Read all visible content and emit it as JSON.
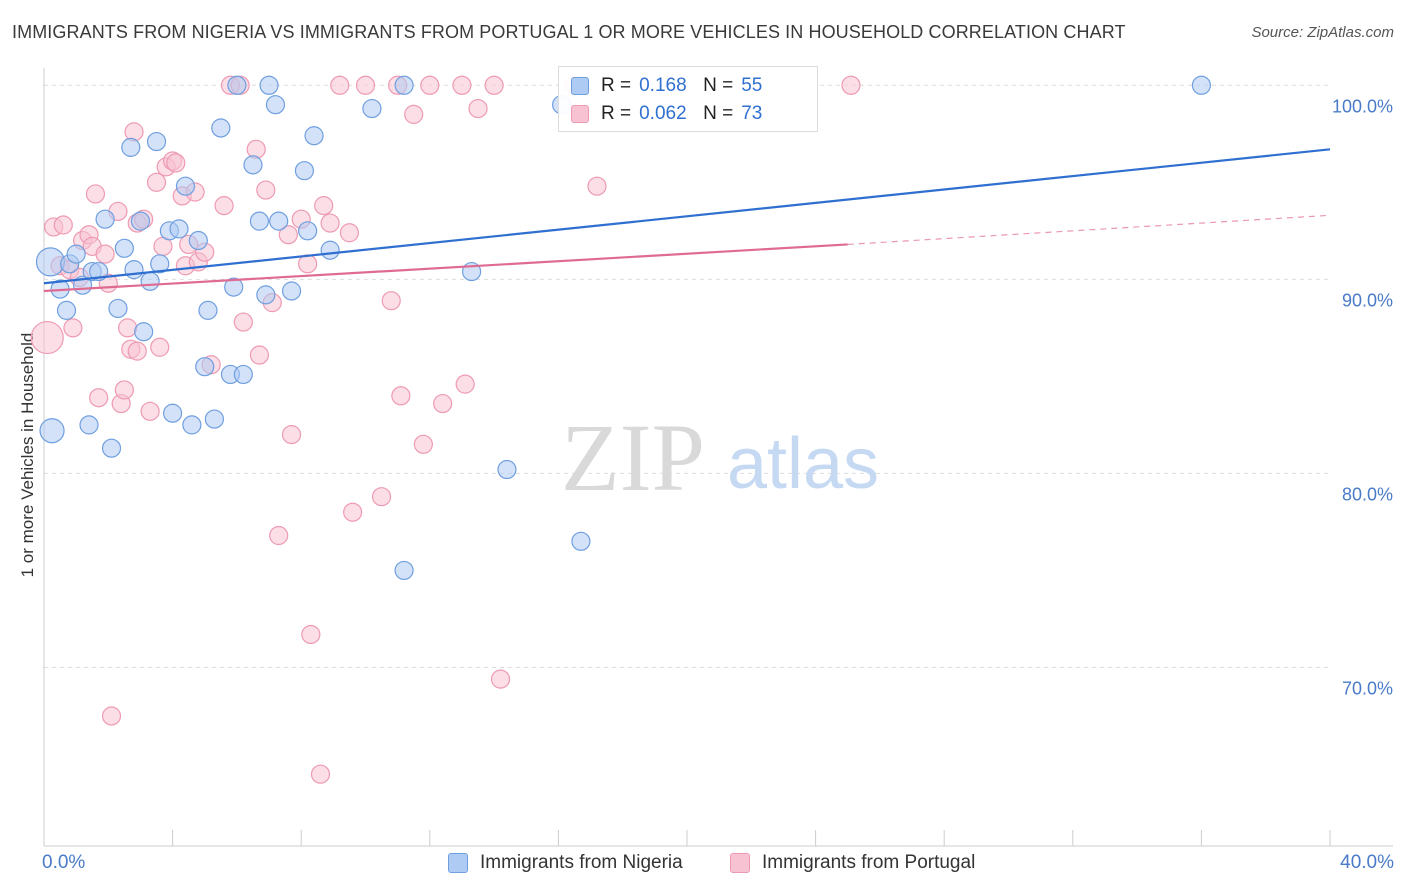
{
  "title": "IMMIGRANTS FROM NIGERIA VS IMMIGRANTS FROM PORTUGAL 1 OR MORE VEHICLES IN HOUSEHOLD CORRELATION CHART",
  "source": "Source: ZipAtlas.com",
  "colors": {
    "nigeria_fill": "#aecbf3",
    "nigeria_stroke": "#6f9fe0",
    "nigeria_line": "#2f6fd0",
    "portugal_fill": "#f7c3d2",
    "portugal_stroke": "#ee9ab2",
    "portugal_line": "#e06b92",
    "axis_text": "#4a7bc8",
    "grid": "#dddddd"
  },
  "legend": {
    "rows": [
      {
        "r_label": "R =",
        "r_value": "0.168",
        "n_label": "N =",
        "n_value": "55"
      },
      {
        "r_label": "R =",
        "r_value": "0.062",
        "n_label": "N =",
        "n_value": "73"
      }
    ]
  },
  "bottom_legend": {
    "nigeria": "Immigrants from Nigeria",
    "portugal": "Immigrants from Portugal"
  },
  "watermark": {
    "zip": "ZIP",
    "atlas": "atlas"
  },
  "chart_data": {
    "type": "scatter",
    "title": "IMMIGRANTS FROM NIGERIA VS IMMIGRANTS FROM PORTUGAL 1 OR MORE VEHICLES IN HOUSEHOLD CORRELATION CHART",
    "xlabel": "",
    "ylabel": "1 or more Vehicles in Household",
    "xlim": [
      0,
      40
    ],
    "ylim": [
      60.8,
      101.2
    ],
    "x_tick_labels": [
      "0.0%",
      "40.0%"
    ],
    "y_ticks": [
      70,
      80,
      90,
      100
    ],
    "y_tick_labels": [
      "70.0%",
      "80.0%",
      "90.0%",
      "100.0%"
    ],
    "series": [
      {
        "name": "Immigrants from Nigeria",
        "R": 0.168,
        "N": 55,
        "trend": {
          "x": [
            0,
            40
          ],
          "y": [
            89.8,
            96.7
          ]
        },
        "points": [
          {
            "x": 0.2,
            "y": 90.9,
            "s": 14
          },
          {
            "x": 0.25,
            "y": 82.2,
            "s": 12
          },
          {
            "x": 0.5,
            "y": 89.5,
            "s": 9
          },
          {
            "x": 0.7,
            "y": 88.4,
            "s": 9
          },
          {
            "x": 0.8,
            "y": 90.8,
            "s": 9
          },
          {
            "x": 1.0,
            "y": 91.3,
            "s": 9
          },
          {
            "x": 1.2,
            "y": 89.7,
            "s": 9
          },
          {
            "x": 1.4,
            "y": 82.5,
            "s": 9
          },
          {
            "x": 1.5,
            "y": 90.4,
            "s": 9
          },
          {
            "x": 1.7,
            "y": 90.4,
            "s": 9
          },
          {
            "x": 1.9,
            "y": 93.1,
            "s": 9
          },
          {
            "x": 2.1,
            "y": 81.3,
            "s": 9
          },
          {
            "x": 2.3,
            "y": 88.5,
            "s": 9
          },
          {
            "x": 2.5,
            "y": 91.6,
            "s": 9
          },
          {
            "x": 2.7,
            "y": 96.8,
            "s": 9
          },
          {
            "x": 2.8,
            "y": 90.5,
            "s": 9
          },
          {
            "x": 3.0,
            "y": 93.0,
            "s": 9
          },
          {
            "x": 3.1,
            "y": 87.3,
            "s": 9
          },
          {
            "x": 3.3,
            "y": 89.9,
            "s": 9
          },
          {
            "x": 3.5,
            "y": 97.1,
            "s": 9
          },
          {
            "x": 3.6,
            "y": 90.8,
            "s": 9
          },
          {
            "x": 3.9,
            "y": 92.5,
            "s": 9
          },
          {
            "x": 4.0,
            "y": 83.1,
            "s": 9
          },
          {
            "x": 4.2,
            "y": 92.6,
            "s": 9
          },
          {
            "x": 4.4,
            "y": 94.8,
            "s": 9
          },
          {
            "x": 4.6,
            "y": 82.5,
            "s": 9
          },
          {
            "x": 4.8,
            "y": 92.0,
            "s": 9
          },
          {
            "x": 5.0,
            "y": 85.5,
            "s": 9
          },
          {
            "x": 5.1,
            "y": 88.4,
            "s": 9
          },
          {
            "x": 5.3,
            "y": 82.8,
            "s": 9
          },
          {
            "x": 5.5,
            "y": 97.8,
            "s": 9
          },
          {
            "x": 5.8,
            "y": 85.1,
            "s": 9
          },
          {
            "x": 5.9,
            "y": 89.6,
            "s": 9
          },
          {
            "x": 6.2,
            "y": 85.1,
            "s": 9
          },
          {
            "x": 6.0,
            "y": 100.0,
            "s": 9
          },
          {
            "x": 6.5,
            "y": 95.9,
            "s": 9
          },
          {
            "x": 6.7,
            "y": 93.0,
            "s": 9
          },
          {
            "x": 6.9,
            "y": 89.2,
            "s": 9
          },
          {
            "x": 7.0,
            "y": 100.0,
            "s": 9
          },
          {
            "x": 7.2,
            "y": 99.0,
            "s": 9
          },
          {
            "x": 7.3,
            "y": 93.0,
            "s": 9
          },
          {
            "x": 7.7,
            "y": 89.4,
            "s": 9
          },
          {
            "x": 8.1,
            "y": 95.6,
            "s": 9
          },
          {
            "x": 8.2,
            "y": 92.5,
            "s": 9
          },
          {
            "x": 8.4,
            "y": 97.4,
            "s": 9
          },
          {
            "x": 8.9,
            "y": 91.5,
            "s": 9
          },
          {
            "x": 10.2,
            "y": 98.8,
            "s": 9
          },
          {
            "x": 11.2,
            "y": 100.0,
            "s": 9
          },
          {
            "x": 13.3,
            "y": 90.4,
            "s": 9
          },
          {
            "x": 14.4,
            "y": 80.2,
            "s": 9
          },
          {
            "x": 11.2,
            "y": 75.0,
            "s": 9
          },
          {
            "x": 16.1,
            "y": 99.0,
            "s": 9
          },
          {
            "x": 16.7,
            "y": 76.5,
            "s": 9
          },
          {
            "x": 36.0,
            "y": 100.0,
            "s": 9
          }
        ]
      },
      {
        "name": "Immigrants from Portugal",
        "R": 0.062,
        "N": 73,
        "trend": {
          "x": [
            0,
            25
          ],
          "y": [
            89.4,
            91.8
          ]
        },
        "trend_dashed": {
          "x": [
            25,
            40
          ],
          "y": [
            91.8,
            93.3
          ]
        },
        "points": [
          {
            "x": 0.1,
            "y": 87.0,
            "s": 16
          },
          {
            "x": 0.3,
            "y": 92.7,
            "s": 9
          },
          {
            "x": 0.5,
            "y": 90.7,
            "s": 9
          },
          {
            "x": 0.6,
            "y": 92.8,
            "s": 9
          },
          {
            "x": 0.8,
            "y": 90.5,
            "s": 9
          },
          {
            "x": 0.9,
            "y": 87.5,
            "s": 9
          },
          {
            "x": 1.1,
            "y": 90.1,
            "s": 9
          },
          {
            "x": 1.2,
            "y": 92.0,
            "s": 9
          },
          {
            "x": 1.4,
            "y": 92.3,
            "s": 9
          },
          {
            "x": 1.5,
            "y": 91.7,
            "s": 9
          },
          {
            "x": 1.6,
            "y": 94.4,
            "s": 9
          },
          {
            "x": 1.7,
            "y": 83.9,
            "s": 9
          },
          {
            "x": 1.9,
            "y": 91.3,
            "s": 9
          },
          {
            "x": 2.0,
            "y": 89.8,
            "s": 9
          },
          {
            "x": 2.1,
            "y": 67.5,
            "s": 9
          },
          {
            "x": 2.3,
            "y": 93.5,
            "s": 9
          },
          {
            "x": 2.4,
            "y": 83.6,
            "s": 9
          },
          {
            "x": 2.5,
            "y": 84.3,
            "s": 9
          },
          {
            "x": 2.6,
            "y": 87.5,
            "s": 9
          },
          {
            "x": 2.7,
            "y": 86.4,
            "s": 9
          },
          {
            "x": 2.8,
            "y": 97.6,
            "s": 9
          },
          {
            "x": 2.9,
            "y": 86.3,
            "s": 9
          },
          {
            "x": 2.9,
            "y": 92.9,
            "s": 9
          },
          {
            "x": 3.1,
            "y": 93.1,
            "s": 9
          },
          {
            "x": 3.3,
            "y": 83.2,
            "s": 9
          },
          {
            "x": 3.5,
            "y": 95.0,
            "s": 9
          },
          {
            "x": 3.6,
            "y": 86.5,
            "s": 9
          },
          {
            "x": 3.7,
            "y": 91.7,
            "s": 9
          },
          {
            "x": 3.8,
            "y": 95.8,
            "s": 9
          },
          {
            "x": 4.0,
            "y": 96.1,
            "s": 9
          },
          {
            "x": 4.1,
            "y": 96.0,
            "s": 9
          },
          {
            "x": 4.3,
            "y": 94.3,
            "s": 9
          },
          {
            "x": 4.4,
            "y": 90.7,
            "s": 9
          },
          {
            "x": 4.5,
            "y": 91.8,
            "s": 9
          },
          {
            "x": 4.7,
            "y": 94.5,
            "s": 9
          },
          {
            "x": 4.8,
            "y": 90.9,
            "s": 9
          },
          {
            "x": 5.0,
            "y": 91.4,
            "s": 9
          },
          {
            "x": 5.2,
            "y": 85.6,
            "s": 9
          },
          {
            "x": 5.6,
            "y": 93.8,
            "s": 9
          },
          {
            "x": 5.8,
            "y": 100.0,
            "s": 9
          },
          {
            "x": 6.1,
            "y": 100.0,
            "s": 9
          },
          {
            "x": 6.2,
            "y": 87.8,
            "s": 9
          },
          {
            "x": 6.6,
            "y": 96.7,
            "s": 9
          },
          {
            "x": 6.7,
            "y": 86.1,
            "s": 9
          },
          {
            "x": 6.9,
            "y": 94.6,
            "s": 9
          },
          {
            "x": 7.1,
            "y": 88.8,
            "s": 9
          },
          {
            "x": 7.3,
            "y": 76.8,
            "s": 9
          },
          {
            "x": 7.6,
            "y": 92.3,
            "s": 9
          },
          {
            "x": 7.7,
            "y": 82.0,
            "s": 9
          },
          {
            "x": 8.0,
            "y": 93.1,
            "s": 9
          },
          {
            "x": 8.2,
            "y": 90.8,
            "s": 9
          },
          {
            "x": 8.3,
            "y": 71.7,
            "s": 9
          },
          {
            "x": 8.6,
            "y": 64.5,
            "s": 9
          },
          {
            "x": 8.7,
            "y": 93.8,
            "s": 9
          },
          {
            "x": 8.9,
            "y": 92.9,
            "s": 9
          },
          {
            "x": 9.2,
            "y": 100.0,
            "s": 9
          },
          {
            "x": 9.5,
            "y": 92.4,
            "s": 9
          },
          {
            "x": 9.6,
            "y": 78.0,
            "s": 9
          },
          {
            "x": 10.0,
            "y": 100.0,
            "s": 9
          },
          {
            "x": 10.5,
            "y": 78.8,
            "s": 9
          },
          {
            "x": 10.8,
            "y": 88.9,
            "s": 9
          },
          {
            "x": 11.0,
            "y": 100.0,
            "s": 9
          },
          {
            "x": 11.1,
            "y": 84.0,
            "s": 9
          },
          {
            "x": 11.5,
            "y": 98.5,
            "s": 9
          },
          {
            "x": 11.8,
            "y": 81.5,
            "s": 9
          },
          {
            "x": 12.0,
            "y": 100.0,
            "s": 9
          },
          {
            "x": 12.4,
            "y": 83.6,
            "s": 9
          },
          {
            "x": 13.0,
            "y": 100.0,
            "s": 9
          },
          {
            "x": 13.1,
            "y": 84.6,
            "s": 9
          },
          {
            "x": 13.5,
            "y": 98.8,
            "s": 9
          },
          {
            "x": 14.0,
            "y": 100.0,
            "s": 9
          },
          {
            "x": 14.2,
            "y": 69.4,
            "s": 9
          },
          {
            "x": 16.5,
            "y": 100.0,
            "s": 9
          },
          {
            "x": 17.2,
            "y": 94.8,
            "s": 9
          },
          {
            "x": 25.1,
            "y": 100.0,
            "s": 9
          }
        ]
      }
    ]
  }
}
